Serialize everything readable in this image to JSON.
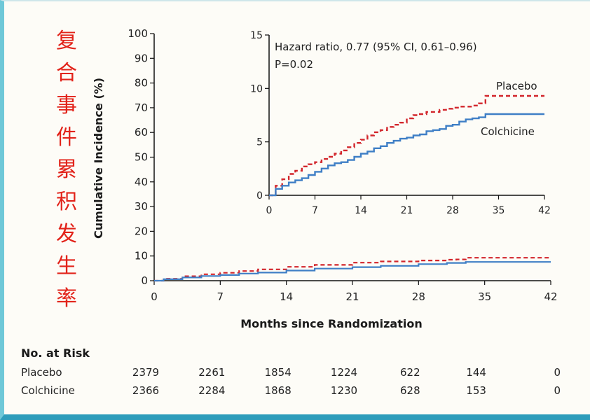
{
  "caption_cn": [
    "复",
    "合",
    "事",
    "件",
    "累",
    "积",
    "发",
    "生",
    "率"
  ],
  "chart_data": [
    {
      "type": "line",
      "xlabel": "Months since Randomization",
      "ylabel": "Cumulative Incidence (%)",
      "xlim": [
        0,
        42
      ],
      "ylim": [
        0,
        100
      ],
      "x_ticks": [
        0,
        7,
        14,
        21,
        28,
        35,
        42
      ],
      "y_ticks": [
        0,
        10,
        20,
        30,
        40,
        50,
        60,
        70,
        80,
        90,
        100
      ],
      "series": [
        {
          "name": "Placebo",
          "style": "dashed",
          "color": "#d2262c",
          "x": [
            0,
            1,
            3,
            5,
            7,
            9,
            11,
            14,
            17,
            21,
            24,
            28,
            31,
            32,
            33,
            42
          ],
          "y": [
            0,
            0.8,
            1.8,
            2.6,
            3.2,
            3.9,
            4.6,
            5.6,
            6.4,
            7.3,
            7.8,
            8.2,
            8.5,
            8.6,
            9.3,
            9.3
          ]
        },
        {
          "name": "Colchicine",
          "style": "solid",
          "color": "#3f7fc6",
          "x": [
            0,
            1,
            3,
            5,
            7,
            9,
            11,
            14,
            17,
            21,
            24,
            28,
            31,
            33,
            42
          ],
          "y": [
            0,
            0.6,
            1.3,
            1.9,
            2.3,
            2.9,
            3.3,
            4.1,
            4.9,
            5.5,
            6.0,
            6.7,
            7.2,
            7.6,
            7.6
          ]
        }
      ]
    },
    {
      "type": "line",
      "subplot": "inset",
      "xlim": [
        0,
        42
      ],
      "ylim": [
        0,
        15
      ],
      "x_ticks": [
        0,
        7,
        14,
        21,
        28,
        35,
        42
      ],
      "y_ticks": [
        0,
        5,
        10,
        15
      ],
      "annotation_line1": "Hazard ratio, 0.77 (95% CI, 0.61–0.96)",
      "annotation_line2": "P=0.02",
      "series": [
        {
          "name": "Placebo",
          "style": "dashed",
          "color": "#d2262c",
          "x": [
            0,
            1,
            2,
            3,
            4,
            5,
            6,
            7,
            8,
            9,
            10,
            11,
            12,
            13,
            14,
            15,
            16,
            17,
            18,
            19,
            20,
            21,
            22,
            23,
            24,
            25,
            26,
            27,
            28,
            29,
            30,
            31,
            32,
            33,
            34,
            35,
            42
          ],
          "y": [
            0,
            0.9,
            1.5,
            2.0,
            2.3,
            2.7,
            2.9,
            3.1,
            3.4,
            3.6,
            3.9,
            4.2,
            4.5,
            4.9,
            5.2,
            5.6,
            5.9,
            6.1,
            6.4,
            6.6,
            6.8,
            7.2,
            7.5,
            7.6,
            7.8,
            7.8,
            8.0,
            8.1,
            8.2,
            8.3,
            8.3,
            8.4,
            8.6,
            9.3,
            9.3,
            9.3,
            9.3
          ]
        },
        {
          "name": "Colchicine",
          "style": "solid",
          "color": "#3f7fc6",
          "x": [
            0,
            1,
            2,
            3,
            4,
            5,
            6,
            7,
            8,
            9,
            10,
            11,
            12,
            13,
            14,
            15,
            16,
            17,
            18,
            19,
            20,
            21,
            22,
            23,
            24,
            25,
            26,
            27,
            28,
            29,
            30,
            31,
            32,
            33,
            34,
            35,
            42
          ],
          "y": [
            0,
            0.6,
            0.9,
            1.2,
            1.4,
            1.6,
            1.9,
            2.2,
            2.5,
            2.8,
            3.0,
            3.1,
            3.3,
            3.6,
            3.9,
            4.1,
            4.4,
            4.6,
            4.9,
            5.1,
            5.3,
            5.4,
            5.6,
            5.7,
            6.0,
            6.1,
            6.2,
            6.5,
            6.6,
            6.9,
            7.1,
            7.2,
            7.3,
            7.6,
            7.6,
            7.6,
            7.6
          ]
        }
      ]
    }
  ],
  "risk_table": {
    "title": "No. at Risk",
    "time_points": [
      0,
      7,
      14,
      21,
      28,
      35,
      42
    ],
    "rows": [
      {
        "label": "Placebo",
        "values": [
          "2379",
          "2261",
          "1854",
          "1224",
          "622",
          "144",
          "0"
        ]
      },
      {
        "label": "Colchicine",
        "values": [
          "2366",
          "2284",
          "1868",
          "1230",
          "628",
          "153",
          "0"
        ]
      }
    ]
  }
}
